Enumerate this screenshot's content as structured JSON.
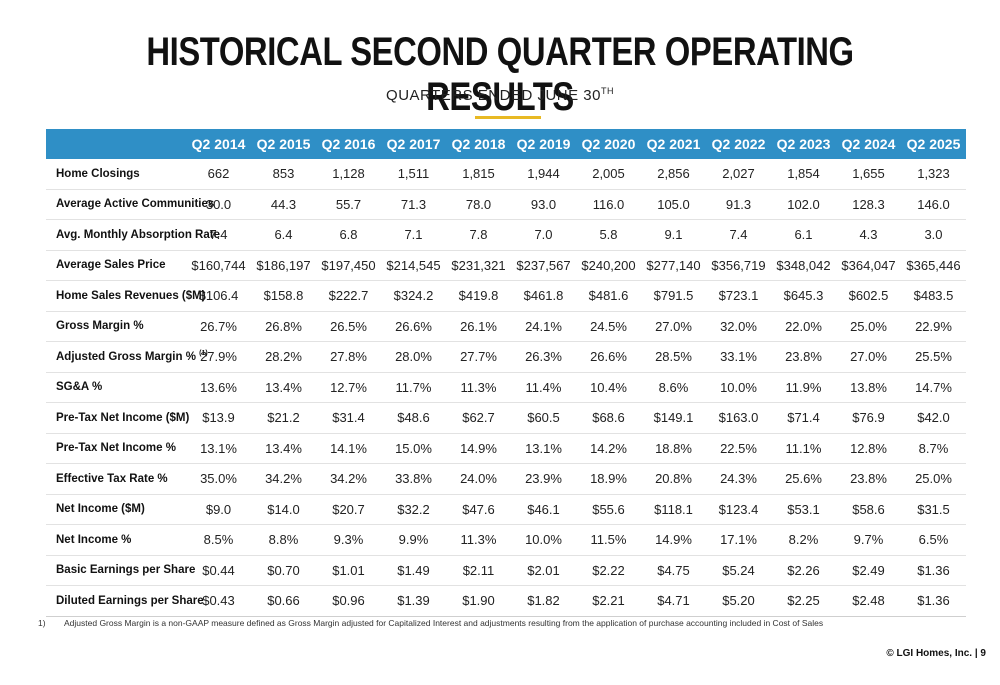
{
  "title": "HISTORICAL SECOND QUARTER OPERATING RESULTS",
  "subtitle": "QUARTERS ENDED JUNE 30",
  "subtitle_sup": "TH",
  "accent_color": "#e8b923",
  "header_color": "#2f8fc6",
  "columns": [
    "Q2 2014",
    "Q2 2015",
    "Q2 2016",
    "Q2 2017",
    "Q2 2018",
    "Q2 2019",
    "Q2 2020",
    "Q2 2021",
    "Q2 2022",
    "Q2 2023",
    "Q2 2024",
    "Q2 2025"
  ],
  "rows": [
    {
      "label": "Home Closings",
      "values": [
        "662",
        "853",
        "1,128",
        "1,511",
        "1,815",
        "1,944",
        "2,005",
        "2,856",
        "2,027",
        "1,854",
        "1,655",
        "1,323"
      ]
    },
    {
      "label": "Average Active Communities",
      "values": [
        "30.0",
        "44.3",
        "55.7",
        "71.3",
        "78.0",
        "93.0",
        "116.0",
        "105.0",
        "91.3",
        "102.0",
        "128.3",
        "146.0"
      ]
    },
    {
      "label": "Avg. Monthly Absorption Rate",
      "values": [
        "7.4",
        "6.4",
        "6.8",
        "7.1",
        "7.8",
        "7.0",
        "5.8",
        "9.1",
        "7.4",
        "6.1",
        "4.3",
        "3.0"
      ]
    },
    {
      "label": "Average Sales Price",
      "values": [
        "$160,744",
        "$186,197",
        "$197,450",
        "$214,545",
        "$231,321",
        "$237,567",
        "$240,200",
        "$277,140",
        "$356,719",
        "$348,042",
        "$364,047",
        "$365,446"
      ]
    },
    {
      "label": "Home Sales Revenues ($M)",
      "values": [
        "$106.4",
        "$158.8",
        "$222.7",
        "$324.2",
        "$419.8",
        "$461.8",
        "$481.6",
        "$791.5",
        "$723.1",
        "$645.3",
        "$602.5",
        "$483.5"
      ]
    },
    {
      "label": "Gross Margin %",
      "values": [
        "26.7%",
        "26.8%",
        "26.5%",
        "26.6%",
        "26.1%",
        "24.1%",
        "24.5%",
        "27.0%",
        "32.0%",
        "22.0%",
        "25.0%",
        "22.9%"
      ]
    },
    {
      "label": "Adjusted Gross Margin %",
      "sup": "(1)",
      "values": [
        "27.9%",
        "28.2%",
        "27.8%",
        "28.0%",
        "27.7%",
        "26.3%",
        "26.6%",
        "28.5%",
        "33.1%",
        "23.8%",
        "27.0%",
        "25.5%"
      ]
    },
    {
      "label": "SG&A %",
      "values": [
        "13.6%",
        "13.4%",
        "12.7%",
        "11.7%",
        "11.3%",
        "11.4%",
        "10.4%",
        "8.6%",
        "10.0%",
        "11.9%",
        "13.8%",
        "14.7%"
      ]
    },
    {
      "label": "Pre-Tax Net Income ($M)",
      "values": [
        "$13.9",
        "$21.2",
        "$31.4",
        "$48.6",
        "$62.7",
        "$60.5",
        "$68.6",
        "$149.1",
        "$163.0",
        "$71.4",
        "$76.9",
        "$42.0"
      ]
    },
    {
      "label": "Pre-Tax Net Income %",
      "values": [
        "13.1%",
        "13.4%",
        "14.1%",
        "15.0%",
        "14.9%",
        "13.1%",
        "14.2%",
        "18.8%",
        "22.5%",
        "11.1%",
        "12.8%",
        "8.7%"
      ]
    },
    {
      "label": "Effective Tax Rate %",
      "values": [
        "35.0%",
        "34.2%",
        "34.2%",
        "33.8%",
        "24.0%",
        "23.9%",
        "18.9%",
        "20.8%",
        "24.3%",
        "25.6%",
        "23.8%",
        "25.0%"
      ]
    },
    {
      "label": "Net Income ($M)",
      "values": [
        "$9.0",
        "$14.0",
        "$20.7",
        "$32.2",
        "$47.6",
        "$46.1",
        "$55.6",
        "$118.1",
        "$123.4",
        "$53.1",
        "$58.6",
        "$31.5"
      ]
    },
    {
      "label": "Net Income %",
      "values": [
        "8.5%",
        "8.8%",
        "9.3%",
        "9.9%",
        "11.3%",
        "10.0%",
        "11.5%",
        "14.9%",
        "17.1%",
        "8.2%",
        "9.7%",
        "6.5%"
      ]
    },
    {
      "label": "Basic Earnings per Share",
      "values": [
        "$0.44",
        "$0.70",
        "$1.01",
        "$1.49",
        "$2.11",
        "$2.01",
        "$2.22",
        "$4.75",
        "$5.24",
        "$2.26",
        "$2.49",
        "$1.36"
      ]
    },
    {
      "label": "Diluted Earnings per Share",
      "values": [
        "$0.43",
        "$0.66",
        "$0.96",
        "$1.39",
        "$1.90",
        "$1.82",
        "$2.21",
        "$4.71",
        "$5.20",
        "$2.25",
        "$2.48",
        "$1.36"
      ]
    }
  ],
  "footnote": {
    "number": "1)",
    "text": "Adjusted Gross Margin is a non-GAAP measure defined as Gross Margin adjusted for Capitalized Interest and adjustments resulting from the application of purchase accounting included in Cost of Sales"
  },
  "footer": "© LGI Homes, Inc. | 9"
}
